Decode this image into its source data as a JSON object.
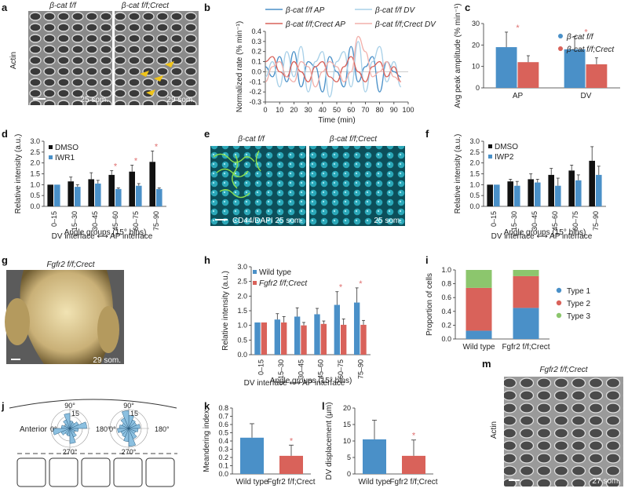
{
  "panels": {
    "a": {
      "letter": "a",
      "title_left": "β-cat f/f",
      "title_right": "β-cat f/f;Crect",
      "ylabel": "Actin",
      "stamp_left": "25 som.",
      "stamp_right": "29 som."
    },
    "b": {
      "letter": "b",
      "legend": [
        "β-cat f/f AP",
        "β-cat f/f DV",
        "β-cat f/f;Crect AP",
        "β-cat f/f;Crect DV"
      ]
    },
    "c": {
      "letter": "c",
      "legend": [
        "β-cat f/f",
        "β-cat f/f;Crect"
      ]
    },
    "d": {
      "letter": "d",
      "legend": [
        "DMSO",
        "IWR1"
      ],
      "footer": "DV interface ⟷ AP interface"
    },
    "e": {
      "letter": "e",
      "title_left": "β-cat f/f",
      "title_right": "β-cat f/f;Crect",
      "stamp_left": "CD44/DAPI 25 som.",
      "stamp_right": "25 som."
    },
    "f": {
      "letter": "f",
      "legend": [
        "DMSO",
        "IWP2"
      ],
      "footer": "DV interface ⟷ AP interface"
    },
    "g": {
      "letter": "g",
      "title": "Fgfr2 f/f;Crect",
      "stamp": "29 som."
    },
    "h": {
      "letter": "h",
      "legend": [
        "Wild type",
        "Fgfr2 f/f;Crect"
      ],
      "footer": "DV interface ⟷ AP interface"
    },
    "i": {
      "letter": "i",
      "legend": [
        "Type 1",
        "Type 2",
        "Type 3"
      ]
    },
    "j": {
      "letter": "j",
      "anterior": "Anterior",
      "angles": [
        "90°",
        "180°",
        "270°",
        "0°"
      ],
      "rings": [
        "15",
        "10",
        "5"
      ]
    },
    "k": {
      "letter": "k"
    },
    "l": {
      "letter": "l"
    },
    "m": {
      "letter": "m",
      "title": "Fgfr2 f/f;Crect",
      "ylabel": "Actin",
      "stamp": "27 som."
    }
  },
  "colors": {
    "blue": "#4a90c8",
    "red": "#d9625a",
    "black": "#111111",
    "green": "#8cc66d",
    "lightblue": "#a8d0e8",
    "lightred": "#f2b0ab"
  },
  "chart_data": [
    {
      "id": "b",
      "type": "line",
      "xlabel": "Time (min)",
      "ylabel": "Normalized rate (% min⁻¹)",
      "xlim": [
        0,
        100
      ],
      "ylim": [
        -0.3,
        0.4
      ],
      "xticks": [
        0,
        10,
        20,
        30,
        40,
        50,
        60,
        70,
        80,
        90,
        100
      ],
      "yticks": [
        -0.3,
        -0.2,
        -0.1,
        0,
        0.1,
        0.2,
        0.3,
        0.4
      ],
      "series": [
        {
          "name": "β-cat f/f AP",
          "color": "#4a90c8",
          "x": [
            0,
            5,
            10,
            15,
            20,
            25,
            30,
            35,
            40,
            45,
            50,
            55,
            60,
            65,
            70,
            75,
            80,
            85,
            90,
            95
          ],
          "y": [
            0.05,
            -0.05,
            0.15,
            -0.1,
            0.2,
            -0.15,
            0.1,
            0.05,
            -0.2,
            0.15,
            0.0,
            -0.15,
            0.25,
            -0.1,
            0.05,
            0.15,
            -0.2,
            0.1,
            0.0,
            -0.05
          ]
        },
        {
          "name": "β-cat f/f DV",
          "color": "#a8d0e8",
          "x": [
            0,
            5,
            10,
            15,
            20,
            25,
            30,
            35,
            40,
            45,
            50,
            55,
            60,
            65,
            70,
            75,
            80,
            85,
            90,
            95
          ],
          "y": [
            -0.05,
            0.1,
            -0.15,
            0.2,
            -0.05,
            0.25,
            -0.2,
            0.1,
            0.2,
            -0.25,
            0.1,
            0.2,
            -0.15,
            0.3,
            -0.2,
            0.1,
            0.25,
            -0.1,
            0.1,
            -0.15
          ]
        },
        {
          "name": "β-cat f/f;Crect AP",
          "color": "#d9625a",
          "x": [
            0,
            5,
            10,
            15,
            20,
            25,
            30,
            35,
            40,
            45,
            50,
            55,
            60,
            65,
            70,
            75,
            80,
            85,
            90,
            95
          ],
          "y": [
            0.1,
            0.15,
            0.0,
            -0.05,
            0.1,
            0.0,
            -0.1,
            0.05,
            0.1,
            -0.05,
            -0.1,
            0.05,
            0.15,
            0.0,
            -0.1,
            0.05,
            0.1,
            -0.05,
            0.05,
            -0.1
          ]
        },
        {
          "name": "β-cat f/f;Crect DV",
          "color": "#f2b0ab",
          "x": [
            0,
            5,
            10,
            15,
            20,
            25,
            30,
            35,
            40,
            45,
            50,
            55,
            60,
            65,
            70,
            75,
            80,
            85,
            90,
            95
          ],
          "y": [
            -0.1,
            0.05,
            0.1,
            -0.05,
            -0.1,
            0.1,
            0.05,
            -0.15,
            0.0,
            0.1,
            0.05,
            -0.1,
            0.0,
            0.35,
            0.2,
            -0.05,
            0.0,
            0.1,
            -0.05,
            -0.1
          ]
        }
      ]
    },
    {
      "id": "c",
      "type": "bar",
      "ylabel": "Avg peak amplitude (% min⁻¹)",
      "ylim": [
        0,
        30
      ],
      "yticks": [
        0,
        10,
        20,
        30
      ],
      "categories": [
        "AP",
        "DV"
      ],
      "series": [
        {
          "name": "β-cat f/f",
          "color": "#4a90c8",
          "values": [
            19,
            18
          ],
          "err": [
            7,
            6
          ]
        },
        {
          "name": "β-cat f/f;Crect",
          "color": "#d9625a",
          "values": [
            12,
            11
          ],
          "err": [
            3,
            3
          ]
        }
      ],
      "stars": [
        0,
        1
      ]
    },
    {
      "id": "d",
      "type": "bar",
      "xlabel": "Angle groups (15° bins)",
      "ylabel": "Relative intensity (a.u.)",
      "ylim": [
        0,
        3.0
      ],
      "yticks": [
        0,
        0.5,
        1.0,
        1.5,
        2.0,
        2.5,
        3.0
      ],
      "categories": [
        "0–15",
        "15–30",
        "30–45",
        "45–60",
        "60–75",
        "75–90"
      ],
      "series": [
        {
          "name": "DMSO",
          "color": "#111111",
          "values": [
            1.0,
            1.15,
            1.25,
            1.45,
            1.6,
            2.05
          ],
          "err": [
            0,
            0.2,
            0.3,
            0.2,
            0.3,
            0.5
          ]
        },
        {
          "name": "IWR1",
          "color": "#4a90c8",
          "values": [
            1.0,
            0.9,
            1.05,
            0.8,
            0.95,
            0.8
          ],
          "err": [
            0,
            0.1,
            0.15,
            0.05,
            0.1,
            0.05
          ]
        }
      ],
      "stars": [
        3,
        4,
        5
      ]
    },
    {
      "id": "f",
      "type": "bar",
      "xlabel": "Angle groups (15° bins)",
      "ylabel": "Relative intensity (a.u.)",
      "ylim": [
        0,
        3.0
      ],
      "yticks": [
        0,
        0.5,
        1.0,
        1.5,
        2.0,
        2.5,
        3.0
      ],
      "categories": [
        "0–15",
        "15–30",
        "30–45",
        "45–60",
        "60–75",
        "75–90"
      ],
      "series": [
        {
          "name": "DMSO",
          "color": "#111111",
          "values": [
            1.0,
            1.15,
            1.25,
            1.45,
            1.65,
            2.1
          ],
          "err": [
            0,
            0.1,
            0.25,
            0.3,
            0.25,
            0.65
          ]
        },
        {
          "name": "IWP2",
          "color": "#4a90c8",
          "values": [
            1.0,
            0.95,
            1.1,
            0.95,
            1.2,
            1.45
          ],
          "err": [
            0,
            0.2,
            0.15,
            0.35,
            0.25,
            0.4
          ]
        }
      ],
      "stars": []
    },
    {
      "id": "h",
      "type": "bar",
      "xlabel": "Angle groups (15° bins)",
      "ylabel": "Relative intensity (a.u.)",
      "ylim": [
        0,
        3.0
      ],
      "yticks": [
        0,
        0.5,
        1.0,
        1.5,
        2.0,
        2.5,
        3.0
      ],
      "categories": [
        "0–15",
        "15–30",
        "30–45",
        "45–60",
        "60–75",
        "75–90"
      ],
      "series": [
        {
          "name": "Wild type",
          "color": "#4a90c8",
          "values": [
            1.1,
            1.2,
            1.3,
            1.38,
            1.7,
            1.78
          ],
          "err": [
            0,
            0.2,
            0.3,
            0.2,
            0.45,
            0.5
          ]
        },
        {
          "name": "Fgfr2 f/f;Crect",
          "color": "#d9625a",
          "values": [
            1.1,
            1.1,
            1.0,
            1.05,
            1.02,
            1.02
          ],
          "err": [
            0,
            0.2,
            0.1,
            0.1,
            0.2,
            0.15
          ]
        }
      ],
      "stars": [
        4,
        5
      ]
    },
    {
      "id": "i",
      "type": "bar",
      "stacked": true,
      "ylabel": "Proportion of cells",
      "ylim": [
        0,
        1.0
      ],
      "yticks": [
        0,
        0.2,
        0.4,
        0.6,
        0.8,
        1.0
      ],
      "categories": [
        "Wild type",
        "Fgfr2 f/f;Crect"
      ],
      "series": [
        {
          "name": "Type 1",
          "color": "#4a90c8",
          "values": [
            0.12,
            0.45
          ]
        },
        {
          "name": "Type 2",
          "color": "#d9625a",
          "values": [
            0.62,
            0.46
          ]
        },
        {
          "name": "Type 3",
          "color": "#8cc66d",
          "values": [
            0.26,
            0.09
          ]
        }
      ]
    },
    {
      "id": "k",
      "type": "bar",
      "ylabel": "Meandering index",
      "ylim": [
        0,
        0.8
      ],
      "yticks": [
        0,
        0.1,
        0.2,
        0.3,
        0.4,
        0.5,
        0.6,
        0.7,
        0.8
      ],
      "categories": [
        "Wild type",
        "Fgfr2 f/f;Crect"
      ],
      "values": [
        0.44,
        0.22
      ],
      "err": [
        0.17,
        0.13
      ],
      "colors": [
        "#4a90c8",
        "#d9625a"
      ],
      "stars": [
        1
      ]
    },
    {
      "id": "l",
      "type": "bar",
      "ylabel": "DV displacement (μm)",
      "ylim": [
        0,
        20
      ],
      "yticks": [
        0,
        5,
        10,
        15,
        20
      ],
      "categories": [
        "Wild type",
        "Fgfr2 f/f;Crect"
      ],
      "values": [
        10.5,
        5.5
      ],
      "err": [
        5.8,
        4.8
      ],
      "colors": [
        "#4a90c8",
        "#d9625a"
      ],
      "stars": [
        1
      ]
    }
  ]
}
